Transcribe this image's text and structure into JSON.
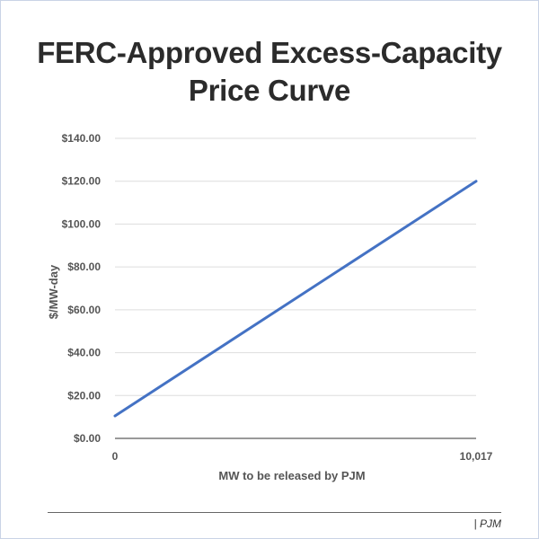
{
  "chart_data": {
    "type": "line",
    "title": "FERC-Approved Excess-Capacity Price Curve",
    "xlabel": "MW to be released by PJM",
    "ylabel": "$/MW-day",
    "x_ticks": [
      "0",
      "10,017"
    ],
    "y_ticks": [
      "$0.00",
      "$20.00",
      "$40.00",
      "$60.00",
      "$80.00",
      "$100.00",
      "$120.00",
      "$140.00"
    ],
    "xlim": [
      0,
      10017
    ],
    "ylim": [
      0,
      140
    ],
    "grid": "horizontal",
    "legend": "none",
    "series": [
      {
        "x": [
          0,
          10017
        ],
        "y": [
          10.5,
          120
        ],
        "color": "#4472c4"
      }
    ]
  },
  "footer": {
    "source": "| PJM"
  }
}
